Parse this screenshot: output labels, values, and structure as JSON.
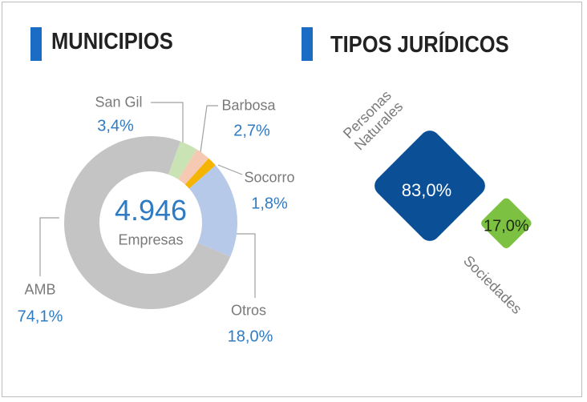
{
  "chart_data": [
    {
      "type": "pie",
      "title": "MUNICIPIOS",
      "categories": [
        "San Gil",
        "Barbosa",
        "Socorro",
        "Otros",
        "AMB"
      ],
      "values": [
        3.4,
        2.7,
        1.8,
        18.0,
        74.1
      ],
      "value_labels": [
        "3,4%",
        "2,7%",
        "1,8%",
        "18,0%",
        "74,1%"
      ],
      "colors": [
        "#c9e3b5",
        "#f6c9b3",
        "#f5b400",
        "#b7c9e8",
        "#c4c4c4"
      ],
      "annotations": [
        "4.946",
        "Empresas"
      ]
    },
    {
      "type": "square",
      "title": "TIPOS JURÍDICOS",
      "categories": [
        "Personas Naturales",
        "Sociedades"
      ],
      "values": [
        83.0,
        17.0
      ],
      "value_labels": [
        "83,0%",
        "17,0%"
      ],
      "colors": [
        "#0b4f96",
        "#7dc142"
      ]
    }
  ]
}
